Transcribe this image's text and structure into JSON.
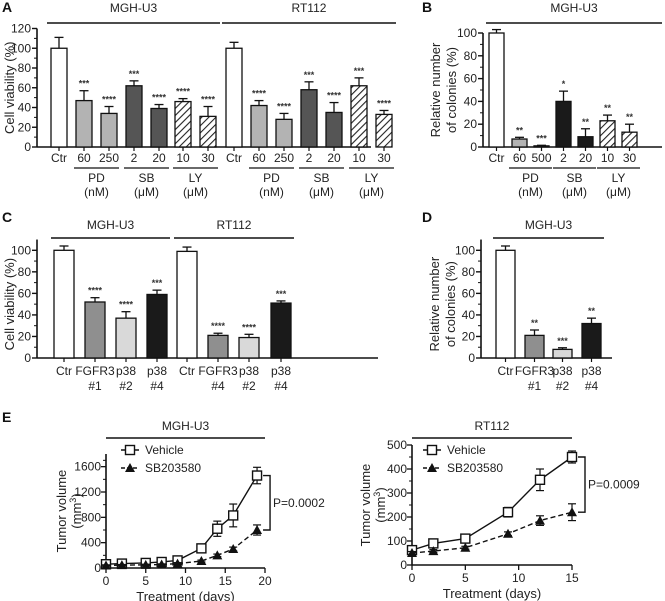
{
  "chart_data": [
    {
      "panel": "A",
      "type": "bar",
      "ylabel": "Cell viability (%)",
      "ylim": [
        0,
        120
      ],
      "yticks": [
        0,
        20,
        40,
        60,
        80,
        100,
        120
      ],
      "groups": [
        {
          "title": "MGH-U3",
          "categories": [
            "Ctr",
            "60",
            "250",
            "2",
            "20",
            "10",
            "30"
          ],
          "values": [
            100,
            47,
            34,
            62,
            39,
            46,
            31
          ],
          "errors": [
            11,
            10,
            7,
            5,
            4,
            3,
            10
          ],
          "fills": [
            "white",
            "light",
            "light",
            "dark",
            "dark",
            "hatch",
            "hatch"
          ],
          "significance": [
            "",
            "***",
            "****",
            "***",
            "****",
            "****",
            "****"
          ],
          "treatments": [
            {
              "name": "PD",
              "unit": "(nM)",
              "span": [
                1,
                2
              ]
            },
            {
              "name": "SB",
              "unit": "(μM)",
              "span": [
                3,
                4
              ]
            },
            {
              "name": "LY",
              "unit": "(μM)",
              "span": [
                5,
                6
              ]
            }
          ]
        },
        {
          "title": "RT112",
          "categories": [
            "Ctr",
            "60",
            "250",
            "2",
            "20",
            "10",
            "30"
          ],
          "values": [
            100,
            42,
            28,
            58,
            35,
            62,
            33
          ],
          "errors": [
            6,
            5,
            6,
            8,
            10,
            8,
            4
          ],
          "fills": [
            "white",
            "light",
            "light",
            "dark",
            "dark",
            "hatch",
            "hatch"
          ],
          "significance": [
            "",
            "****",
            "****",
            "***",
            "****",
            "***",
            "****"
          ],
          "treatments": [
            {
              "name": "PD",
              "unit": "(nM)",
              "span": [
                1,
                2
              ]
            },
            {
              "name": "SB",
              "unit": "(μM)",
              "span": [
                3,
                4
              ]
            },
            {
              "name": "LY",
              "unit": "(μM)",
              "span": [
                5,
                6
              ]
            }
          ]
        }
      ]
    },
    {
      "panel": "B",
      "type": "bar",
      "ylabel": "Relative number of colonies (%)",
      "ylabel_lines": [
        "Relative number",
        "of colonies (%)"
      ],
      "ylim": [
        0,
        100
      ],
      "yticks": [
        0,
        20,
        40,
        60,
        80,
        100
      ],
      "groups": [
        {
          "title": "MGH-U3",
          "categories": [
            "Ctr",
            "60",
            "500",
            "2",
            "20",
            "10",
            "30"
          ],
          "values": [
            100,
            7,
            1,
            40,
            9,
            23,
            13
          ],
          "errors": [
            3,
            1.5,
            0.5,
            9,
            7,
            5,
            7
          ],
          "fills": [
            "white",
            "light",
            "light",
            "black",
            "black",
            "hatch",
            "hatch"
          ],
          "significance": [
            "",
            "**",
            "***",
            "*",
            "**",
            "**",
            "**"
          ],
          "treatments": [
            {
              "name": "PD",
              "unit": "(nM)",
              "span": [
                1,
                2
              ]
            },
            {
              "name": "SB",
              "unit": "(μM)",
              "span": [
                3,
                4
              ]
            },
            {
              "name": "LY",
              "unit": "(μM)",
              "span": [
                5,
                6
              ]
            }
          ]
        }
      ]
    },
    {
      "panel": "C",
      "type": "bar",
      "ylabel": "Cell viability (%)",
      "ylim": [
        0,
        110
      ],
      "yticks": [
        0,
        20,
        40,
        60,
        80,
        100
      ],
      "groups": [
        {
          "title": "MGH-U3",
          "categories": [
            [
              "Ctr"
            ],
            [
              "FGFR3",
              "#1"
            ],
            [
              "p38",
              "#2"
            ],
            [
              "p38",
              "#4"
            ]
          ],
          "values": [
            100,
            52,
            37,
            59
          ],
          "errors": [
            4,
            4,
            6,
            4
          ],
          "fills": [
            "white",
            "mid",
            "pale",
            "black"
          ],
          "significance": [
            "",
            "****",
            "****",
            "***"
          ]
        },
        {
          "title": "RT112",
          "categories": [
            [
              "Ctr"
            ],
            [
              "FGFR3",
              "#4"
            ],
            [
              "p38",
              "#2"
            ],
            [
              "p38",
              "#4"
            ]
          ],
          "values": [
            99,
            21,
            19,
            51
          ],
          "errors": [
            4,
            2,
            3,
            2
          ],
          "fills": [
            "white",
            "mid",
            "pale",
            "black"
          ],
          "significance": [
            "",
            "****",
            "****",
            "***"
          ]
        }
      ]
    },
    {
      "panel": "D",
      "type": "bar",
      "ylabel": "Relative number of colonies (%)",
      "ylabel_lines": [
        "Relative number",
        "of colonies (%)"
      ],
      "ylim": [
        0,
        110
      ],
      "yticks": [
        0,
        20,
        40,
        60,
        80,
        100
      ],
      "groups": [
        {
          "title": "MGH-U3",
          "categories": [
            [
              "Ctr"
            ],
            [
              "FGFR3",
              "#1"
            ],
            [
              "p38",
              "#2"
            ],
            [
              "p38",
              "#4"
            ]
          ],
          "values": [
            100,
            21,
            8,
            32
          ],
          "errors": [
            4,
            5,
            1.5,
            5
          ],
          "fills": [
            "white",
            "mid",
            "pale",
            "black"
          ],
          "significance": [
            "",
            "**",
            "***",
            "**"
          ]
        }
      ]
    },
    {
      "panel": "E",
      "type": "line",
      "title": "MGH-U3",
      "xlabel": "Treatment (days)",
      "ylabel": "Tumor volume",
      "ylabel_unit": "(mm3)",
      "xlim": [
        0,
        20
      ],
      "xticks": [
        0,
        5,
        10,
        15,
        20
      ],
      "ylim": [
        0,
        1800
      ],
      "yticks": [
        0,
        400,
        800,
        1200,
        1600
      ],
      "legend_position": "top-left",
      "p_value": "P=0.0002",
      "series": [
        {
          "name": "Vehicle",
          "marker": "open-square",
          "line": "solid",
          "x": [
            0,
            2,
            5,
            7,
            9,
            12,
            14,
            16,
            19
          ],
          "y": [
            60,
            70,
            80,
            95,
            120,
            310,
            620,
            830,
            1460
          ],
          "err": [
            20,
            15,
            15,
            20,
            25,
            30,
            120,
            180,
            130
          ]
        },
        {
          "name": "SB203580",
          "marker": "filled-triangle",
          "line": "dashed",
          "x": [
            0,
            2,
            5,
            7,
            9,
            12,
            14,
            16,
            19
          ],
          "y": [
            40,
            45,
            50,
            55,
            70,
            110,
            200,
            300,
            600
          ],
          "err": [
            10,
            10,
            10,
            10,
            15,
            15,
            20,
            30,
            80
          ]
        }
      ]
    },
    {
      "panel": "E2",
      "type": "line",
      "title": "RT112",
      "xlabel": "Treatment (days)",
      "ylabel": "Tumor volume",
      "ylabel_unit": "(mm3)",
      "xlim": [
        0,
        15
      ],
      "xticks": [
        0,
        5,
        10,
        15
      ],
      "ylim": [
        0,
        500
      ],
      "yticks": [
        0,
        100,
        200,
        300,
        400,
        500
      ],
      "legend_position": "top-left",
      "p_value": "P=0.0009",
      "series": [
        {
          "name": "Vehicle",
          "marker": "open-square",
          "line": "solid",
          "x": [
            0,
            2,
            5,
            9,
            12,
            15
          ],
          "y": [
            62,
            90,
            110,
            220,
            355,
            450
          ],
          "err": [
            8,
            8,
            8,
            20,
            45,
            25
          ]
        },
        {
          "name": "SB203580",
          "marker": "filled-triangle",
          "line": "dashed",
          "x": [
            0,
            2,
            5,
            9,
            12,
            15
          ],
          "y": [
            50,
            58,
            72,
            130,
            185,
            220
          ],
          "err": [
            6,
            6,
            6,
            8,
            20,
            35
          ]
        }
      ]
    }
  ],
  "panel_letters": [
    "A",
    "B",
    "C",
    "D",
    "E"
  ]
}
